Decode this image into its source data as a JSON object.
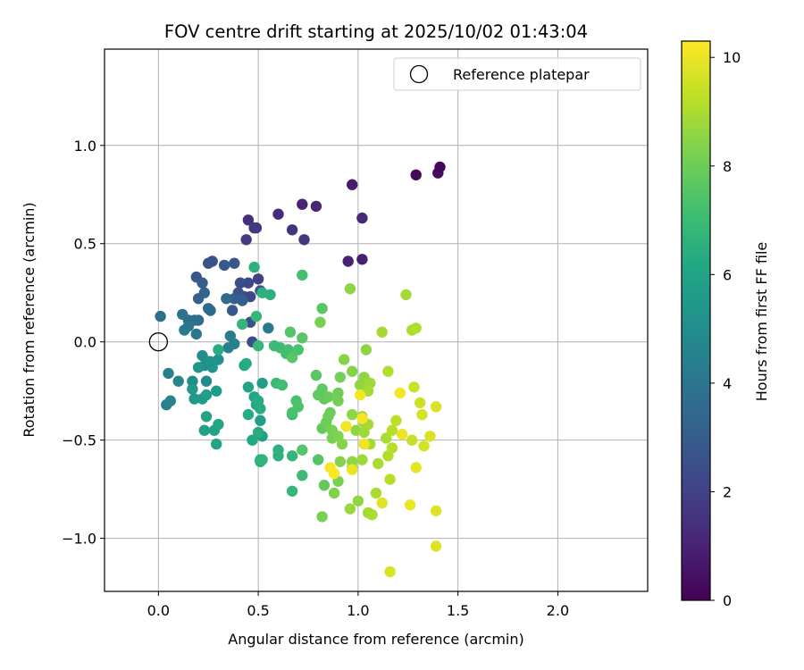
{
  "chart_data": {
    "type": "scatter",
    "title": "FOV centre drift starting at 2025/10/02 01:43:04",
    "xlabel": "Angular distance from reference (arcmin)",
    "ylabel": "Rotation from reference (arcmin)",
    "xlim": [
      -0.27,
      2.45
    ],
    "ylim": [
      -1.27,
      1.49
    ],
    "xticks": [
      0.0,
      0.5,
      1.0,
      1.5,
      2.0
    ],
    "xtick_labels": [
      "0.0",
      "0.5",
      "1.0",
      "1.5",
      "2.0"
    ],
    "yticks": [
      -1.0,
      -0.5,
      0.0,
      0.5,
      1.0
    ],
    "ytick_labels": [
      "−1.0",
      "−0.5",
      "0.0",
      "0.5",
      "1.0"
    ],
    "grid": true,
    "legend": {
      "label": "Reference platepar",
      "location": "upper right"
    },
    "reference_point": {
      "x": 0.0,
      "y": 0.0
    },
    "colorbar": {
      "label": "Hours from first FF file",
      "range": [
        0,
        10.3
      ],
      "ticks": [
        0,
        2,
        4,
        6,
        8,
        10
      ],
      "tick_labels": [
        "0",
        "2",
        "4",
        "6",
        "8",
        "10"
      ],
      "colormap": "viridis"
    },
    "points": [
      [
        1.29,
        0.85,
        0.2
      ],
      [
        1.4,
        0.86,
        0.3
      ],
      [
        1.41,
        0.89,
        0.2
      ],
      [
        0.97,
        0.8,
        0.8
      ],
      [
        0.72,
        0.7,
        1.0
      ],
      [
        0.79,
        0.69,
        1.1
      ],
      [
        1.02,
        0.63,
        1.2
      ],
      [
        0.6,
        0.65,
        1.3
      ],
      [
        0.45,
        0.62,
        1.4
      ],
      [
        0.67,
        0.57,
        1.5
      ],
      [
        0.48,
        0.58,
        1.6
      ],
      [
        0.49,
        0.58,
        1.7
      ],
      [
        0.73,
        0.52,
        1.6
      ],
      [
        0.44,
        0.52,
        1.8
      ],
      [
        0.95,
        0.41,
        1.0
      ],
      [
        1.02,
        0.42,
        0.9
      ],
      [
        0.5,
        0.32,
        2.0
      ],
      [
        0.45,
        0.3,
        2.2
      ],
      [
        0.41,
        0.3,
        2.4
      ],
      [
        0.27,
        0.41,
        2.5
      ],
      [
        0.25,
        0.4,
        2.6
      ],
      [
        0.38,
        0.4,
        2.7
      ],
      [
        0.33,
        0.39,
        2.8
      ],
      [
        0.43,
        0.23,
        2.2
      ],
      [
        0.46,
        0.23,
        2.3
      ],
      [
        0.4,
        0.25,
        2.6
      ],
      [
        0.47,
        0.0,
        2.4
      ],
      [
        0.46,
        0.1,
        2.5
      ],
      [
        0.51,
        0.26,
        2.6
      ],
      [
        0.37,
        0.16,
        2.9
      ],
      [
        0.38,
        0.22,
        3.0
      ],
      [
        0.42,
        0.21,
        3.1
      ],
      [
        0.19,
        0.33,
        2.8
      ],
      [
        0.22,
        0.3,
        3.0
      ],
      [
        0.2,
        0.22,
        3.2
      ],
      [
        0.23,
        0.25,
        3.3
      ],
      [
        0.25,
        0.17,
        3.4
      ],
      [
        0.34,
        0.22,
        3.5
      ],
      [
        0.26,
        0.16,
        3.5
      ],
      [
        0.2,
        0.11,
        3.6
      ],
      [
        0.15,
        0.11,
        3.7
      ],
      [
        0.18,
        0.11,
        3.8
      ],
      [
        0.12,
        0.14,
        3.9
      ],
      [
        0.15,
        0.08,
        4.0
      ],
      [
        0.01,
        0.13,
        3.8
      ],
      [
        0.19,
        0.04,
        4.1
      ],
      [
        0.13,
        0.06,
        4.2
      ],
      [
        0.36,
        0.03,
        4.3
      ],
      [
        0.35,
        -0.03,
        4.4
      ],
      [
        0.55,
        0.07,
        4.3
      ],
      [
        0.38,
        -0.01,
        4.5
      ],
      [
        0.05,
        -0.16,
        4.4
      ],
      [
        0.04,
        -0.32,
        4.5
      ],
      [
        0.06,
        -0.3,
        4.6
      ],
      [
        0.1,
        -0.2,
        4.7
      ],
      [
        0.25,
        -0.1,
        4.8
      ],
      [
        0.24,
        -0.2,
        4.9
      ],
      [
        0.17,
        -0.2,
        5.0
      ],
      [
        0.22,
        -0.07,
        5.0
      ],
      [
        0.23,
        -0.12,
        5.1
      ],
      [
        0.3,
        -0.09,
        5.2
      ],
      [
        0.27,
        -0.13,
        5.3
      ],
      [
        0.26,
        -0.1,
        5.3
      ],
      [
        0.2,
        -0.13,
        5.4
      ],
      [
        0.17,
        -0.24,
        5.5
      ],
      [
        0.18,
        -0.29,
        5.5
      ],
      [
        0.22,
        -0.29,
        5.6
      ],
      [
        0.29,
        -0.25,
        5.6
      ],
      [
        0.24,
        -0.27,
        5.7
      ],
      [
        0.23,
        -0.45,
        5.8
      ],
      [
        0.28,
        -0.45,
        5.9
      ],
      [
        0.29,
        -0.52,
        5.9
      ],
      [
        0.3,
        -0.42,
        6.0
      ],
      [
        0.24,
        -0.38,
        6.0
      ],
      [
        0.52,
        -0.21,
        5.7
      ],
      [
        0.51,
        -0.4,
        5.7
      ],
      [
        0.52,
        -0.48,
        5.8
      ],
      [
        0.45,
        -0.23,
        6.0
      ],
      [
        0.48,
        -0.28,
        6.1
      ],
      [
        0.49,
        -0.32,
        6.2
      ],
      [
        0.5,
        -0.3,
        6.3
      ],
      [
        0.45,
        -0.37,
        6.3
      ],
      [
        0.47,
        -0.5,
        6.2
      ],
      [
        0.51,
        -0.6,
        6.3
      ],
      [
        0.51,
        -0.61,
        6.3
      ],
      [
        0.43,
        -0.12,
        6.2
      ],
      [
        0.44,
        -0.11,
        6.3
      ],
      [
        0.3,
        -0.04,
        6.4
      ],
      [
        0.51,
        -0.34,
        6.4
      ],
      [
        0.5,
        -0.46,
        6.4
      ],
      [
        0.56,
        0.24,
        6.5
      ],
      [
        0.52,
        0.25,
        6.5
      ],
      [
        0.51,
        -0.6,
        6.6
      ],
      [
        0.52,
        -0.6,
        6.7
      ],
      [
        0.6,
        -0.55,
        6.5
      ],
      [
        0.6,
        -0.58,
        6.6
      ],
      [
        0.67,
        -0.58,
        6.7
      ],
      [
        0.67,
        -0.76,
        6.8
      ],
      [
        0.72,
        -0.68,
        7.0
      ],
      [
        0.67,
        -0.37,
        6.9
      ],
      [
        0.42,
        0.09,
        6.7
      ],
      [
        0.48,
        0.38,
        6.5
      ],
      [
        0.49,
        0.13,
        6.8
      ],
      [
        0.5,
        -0.02,
        6.8
      ],
      [
        0.59,
        -0.21,
        6.9
      ],
      [
        0.58,
        -0.02,
        7.0
      ],
      [
        0.61,
        -0.03,
        7.0
      ],
      [
        0.62,
        -0.22,
        7.1
      ],
      [
        0.64,
        -0.06,
        7.2
      ],
      [
        0.65,
        -0.04,
        7.2
      ],
      [
        0.7,
        -0.04,
        7.3
      ],
      [
        0.72,
        0.34,
        7.2
      ],
      [
        0.69,
        -0.3,
        7.3
      ],
      [
        0.7,
        -0.33,
        7.4
      ],
      [
        0.67,
        -0.36,
        7.3
      ],
      [
        0.72,
        -0.55,
        7.5
      ],
      [
        0.66,
        0.05,
        7.5
      ],
      [
        0.67,
        -0.08,
        7.6
      ],
      [
        0.72,
        0.02,
        7.6
      ],
      [
        0.79,
        -0.17,
        7.6
      ],
      [
        0.8,
        -0.6,
        7.5
      ],
      [
        0.8,
        -0.27,
        7.7
      ],
      [
        0.82,
        0.17,
        7.6
      ],
      [
        0.82,
        -0.24,
        7.7
      ],
      [
        0.83,
        -0.29,
        7.8
      ],
      [
        0.82,
        -0.44,
        7.8
      ],
      [
        0.83,
        -0.73,
        7.8
      ],
      [
        0.85,
        -0.28,
        7.9
      ],
      [
        0.86,
        -0.36,
        7.9
      ],
      [
        0.85,
        -0.38,
        8.0
      ],
      [
        0.84,
        -0.41,
        8.0
      ],
      [
        0.9,
        -0.26,
        8.0
      ],
      [
        0.9,
        -0.3,
        8.1
      ],
      [
        0.91,
        -0.18,
        8.1
      ],
      [
        0.87,
        -0.45,
        8.2
      ],
      [
        0.87,
        -0.49,
        8.2
      ],
      [
        0.9,
        -0.71,
        8.2
      ],
      [
        0.88,
        -0.77,
        8.3
      ],
      [
        0.81,
        0.1,
        8.2
      ],
      [
        0.82,
        -0.89,
        8.2
      ],
      [
        0.9,
        -0.48,
        8.3
      ],
      [
        0.91,
        -0.61,
        8.4
      ],
      [
        0.92,
        -0.52,
        8.4
      ],
      [
        0.93,
        -0.09,
        8.4
      ],
      [
        0.96,
        0.27,
        8.5
      ],
      [
        0.97,
        -0.15,
        8.4
      ],
      [
        0.97,
        -0.37,
        8.5
      ],
      [
        0.97,
        -0.61,
        8.5
      ],
      [
        0.97,
        -0.64,
        8.6
      ],
      [
        0.99,
        -0.45,
        8.6
      ],
      [
        1.0,
        -0.81,
        8.6
      ],
      [
        0.96,
        -0.85,
        8.7
      ],
      [
        1.01,
        -0.22,
        8.6
      ],
      [
        1.03,
        -0.18,
        8.6
      ],
      [
        1.04,
        -0.04,
        8.5
      ],
      [
        1.02,
        -0.38,
        8.7
      ],
      [
        1.03,
        -0.41,
        8.7
      ],
      [
        1.03,
        -0.46,
        8.8
      ],
      [
        1.02,
        -0.6,
        8.8
      ],
      [
        1.06,
        -0.21,
        8.8
      ],
      [
        1.05,
        -0.25,
        8.9
      ],
      [
        1.05,
        -0.42,
        8.9
      ],
      [
        1.06,
        -0.52,
        8.9
      ],
      [
        1.05,
        -0.87,
        8.9
      ],
      [
        1.07,
        -0.88,
        9.0
      ],
      [
        1.09,
        -0.77,
        9.0
      ],
      [
        1.1,
        -0.62,
        9.0
      ],
      [
        1.12,
        0.05,
        8.9
      ],
      [
        1.14,
        -0.49,
        9.0
      ],
      [
        1.15,
        -0.15,
        9.1
      ],
      [
        1.15,
        -0.58,
        9.1
      ],
      [
        1.16,
        -0.7,
        9.2
      ],
      [
        1.17,
        -0.45,
        9.2
      ],
      [
        1.17,
        -0.54,
        9.2
      ],
      [
        1.19,
        -0.4,
        9.3
      ],
      [
        1.24,
        0.24,
        8.9
      ],
      [
        1.27,
        0.06,
        9.0
      ],
      [
        1.29,
        0.07,
        9.1
      ],
      [
        1.27,
        -0.5,
        9.4
      ],
      [
        1.28,
        -0.23,
        9.5
      ],
      [
        1.31,
        -0.31,
        9.5
      ],
      [
        1.32,
        -0.37,
        9.6
      ],
      [
        1.33,
        -0.53,
        9.6
      ],
      [
        1.36,
        -0.48,
        9.7
      ],
      [
        1.39,
        -0.33,
        9.7
      ],
      [
        1.39,
        -0.86,
        9.8
      ],
      [
        1.39,
        -1.04,
        9.8
      ],
      [
        1.12,
        -0.82,
        9.8
      ],
      [
        1.16,
        -1.17,
        9.7
      ],
      [
        1.26,
        -0.83,
        10.0
      ],
      [
        1.29,
        -0.64,
        9.9
      ],
      [
        1.22,
        -0.47,
        10.0
      ],
      [
        1.21,
        -0.26,
        10.1
      ],
      [
        1.01,
        -0.27,
        10.1
      ],
      [
        1.02,
        -0.39,
        10.2
      ],
      [
        1.03,
        -0.52,
        10.1
      ],
      [
        0.94,
        -0.43,
        10.1
      ],
      [
        0.86,
        -0.64,
        10.2
      ],
      [
        0.88,
        -0.67,
        10.3
      ],
      [
        0.97,
        -0.65,
        10.0
      ]
    ]
  }
}
